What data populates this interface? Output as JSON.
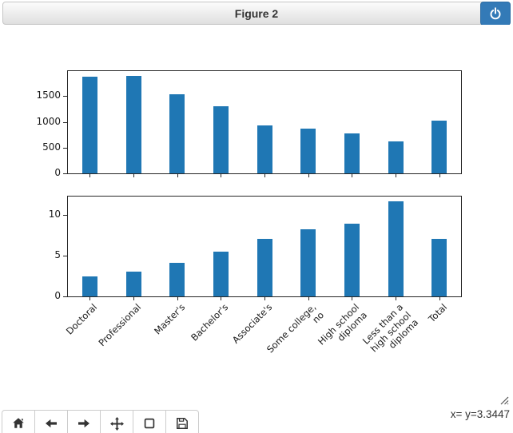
{
  "window": {
    "title": "Figure 2"
  },
  "chart_data": [
    {
      "type": "bar",
      "title": "",
      "xlabel": "",
      "ylabel": "",
      "categories": [
        "Doctoral",
        "Professional",
        "Master's",
        "Bachelor's",
        "Associate's",
        "Some college,\nno",
        "High school\ndiploma",
        "Less than a\nhigh school\ndiploma",
        "Total"
      ],
      "values": [
        1885,
        1893,
        1545,
        1305,
        938,
        877,
        781,
        619,
        1029
      ],
      "yticks": [
        0,
        500,
        1000,
        1500
      ],
      "ylim": [
        0,
        1988
      ],
      "bar_color": "#1f77b4",
      "grid": false,
      "x_tick_labels_visible": false
    },
    {
      "type": "bar",
      "title": "",
      "xlabel": "",
      "ylabel": "",
      "categories": [
        "Doctoral",
        "Professional",
        "Master's",
        "Bachelor's",
        "Associate's",
        "Some college,\nno",
        "High school\ndiploma",
        "Less than a\nhigh school\ndiploma",
        "Total"
      ],
      "values": [
        2.5,
        3.1,
        4.1,
        5.5,
        7.1,
        8.3,
        9.0,
        11.7,
        7.1
      ],
      "yticks": [
        0,
        5,
        10
      ],
      "ylim": [
        0,
        12.3
      ],
      "bar_color": "#1f77b4",
      "grid": false,
      "x_tick_labels_visible": true
    }
  ],
  "toolbar": {
    "buttons": [
      {
        "name": "home-button",
        "icon": "home-icon"
      },
      {
        "name": "back-button",
        "icon": "arrow-left-icon"
      },
      {
        "name": "forward-button",
        "icon": "arrow-right-icon"
      },
      {
        "name": "pan-button",
        "icon": "move-icon"
      },
      {
        "name": "zoom-rect-button",
        "icon": "zoom-rect-icon"
      },
      {
        "name": "save-button",
        "icon": "save-icon"
      }
    ]
  },
  "status": {
    "coordinates": "x= y=3.3447"
  },
  "colors": {
    "bar": "#1f77b4",
    "close_button": "#337ab7",
    "close_button_border": "#2e6da4"
  }
}
